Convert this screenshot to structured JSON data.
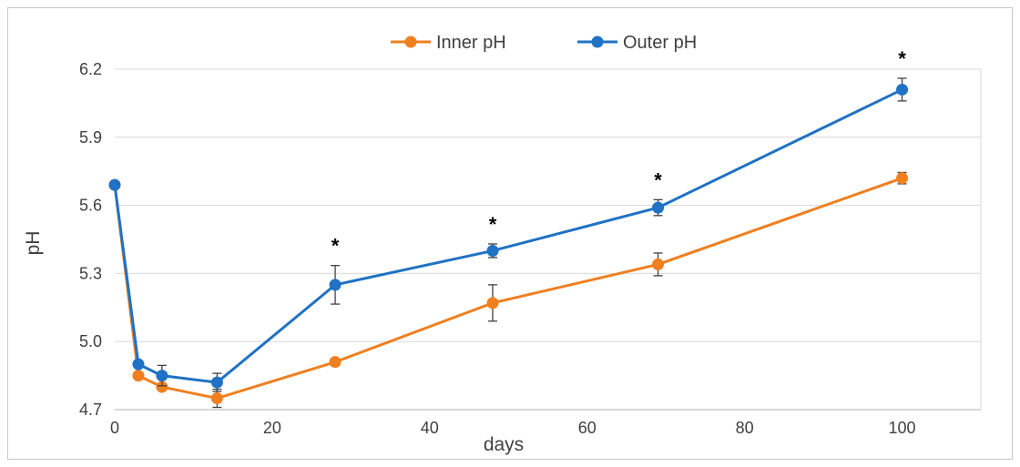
{
  "chart_data": {
    "type": "line",
    "xlabel": "days",
    "ylabel": "pH",
    "xlim": [
      0,
      110
    ],
    "ylim": [
      4.7,
      6.2
    ],
    "xticks": [
      0,
      20,
      40,
      60,
      80,
      100
    ],
    "yticks": [
      4.7,
      5.0,
      5.3,
      5.6,
      5.9,
      6.2
    ],
    "ytick_labels": [
      "4.7",
      "5.0",
      "5.3",
      "5.6",
      "5.9",
      "6.2"
    ],
    "grid": "horizontal",
    "legend_position": "top",
    "significance_marker": "*",
    "significance_x": [
      28,
      48,
      69,
      100
    ],
    "series": [
      {
        "name": "Inner pH",
        "color": "#F07F1F",
        "x": [
          0,
          3,
          6,
          13,
          28,
          48,
          69,
          100
        ],
        "y": [
          5.69,
          4.85,
          4.8,
          4.75,
          4.91,
          5.17,
          5.34,
          5.72
        ],
        "err": [
          0.01,
          0.01,
          0.01,
          0.04,
          0.015,
          0.08,
          0.05,
          0.025
        ]
      },
      {
        "name": "Outer pH",
        "color": "#1F72C4",
        "x": [
          0,
          3,
          6,
          13,
          28,
          48,
          69,
          100
        ],
        "y": [
          5.69,
          4.9,
          4.85,
          4.82,
          5.25,
          5.4,
          5.59,
          6.11
        ],
        "err": [
          0.01,
          0.01,
          0.045,
          0.04,
          0.085,
          0.03,
          0.035,
          0.05
        ]
      }
    ]
  }
}
